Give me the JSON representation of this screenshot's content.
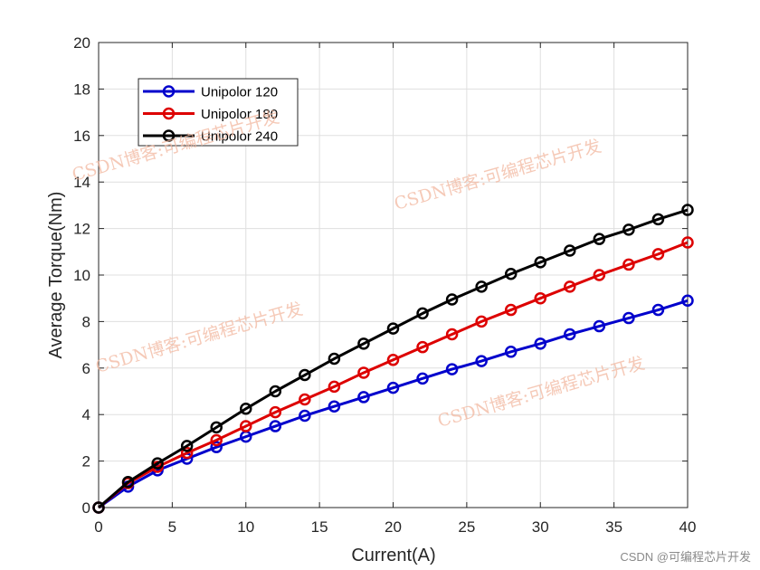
{
  "chart_data": {
    "type": "line",
    "xlabel": "Current(A)",
    "ylabel": "Average Torque(Nm)",
    "xlim": [
      0,
      40
    ],
    "ylim": [
      0,
      20
    ],
    "xticks": [
      0,
      5,
      10,
      15,
      20,
      25,
      30,
      35,
      40
    ],
    "yticks": [
      0,
      2,
      4,
      6,
      8,
      10,
      12,
      14,
      16,
      18,
      20
    ],
    "grid": true,
    "legend_position": "top-left",
    "x": [
      0,
      2,
      4,
      6,
      8,
      10,
      12,
      14,
      16,
      18,
      20,
      22,
      24,
      26,
      28,
      30,
      32,
      34,
      36,
      38,
      40
    ],
    "series": [
      {
        "name": "Unipolor 120",
        "color": "#0000cc",
        "values": [
          0,
          0.9,
          1.6,
          2.1,
          2.6,
          3.05,
          3.5,
          3.95,
          4.35,
          4.75,
          5.15,
          5.55,
          5.95,
          6.3,
          6.7,
          7.05,
          7.45,
          7.8,
          8.15,
          8.5,
          8.9
        ]
      },
      {
        "name": "Unipolor 180",
        "color": "#dd0000",
        "values": [
          0,
          1.05,
          1.75,
          2.35,
          2.9,
          3.5,
          4.1,
          4.65,
          5.2,
          5.8,
          6.35,
          6.9,
          7.45,
          8.0,
          8.5,
          9.0,
          9.5,
          10.0,
          10.45,
          10.9,
          11.4
        ]
      },
      {
        "name": "Unipolor 240",
        "color": "#000000",
        "values": [
          0,
          1.1,
          1.9,
          2.65,
          3.45,
          4.25,
          5.0,
          5.7,
          6.4,
          7.05,
          7.7,
          8.35,
          8.95,
          9.5,
          10.05,
          10.55,
          11.05,
          11.55,
          11.95,
          12.4,
          12.8
        ]
      }
    ]
  },
  "watermark": {
    "text": "CSDN博客:可编程芯片开发",
    "credit": "CSDN @可编程芯片开发"
  }
}
